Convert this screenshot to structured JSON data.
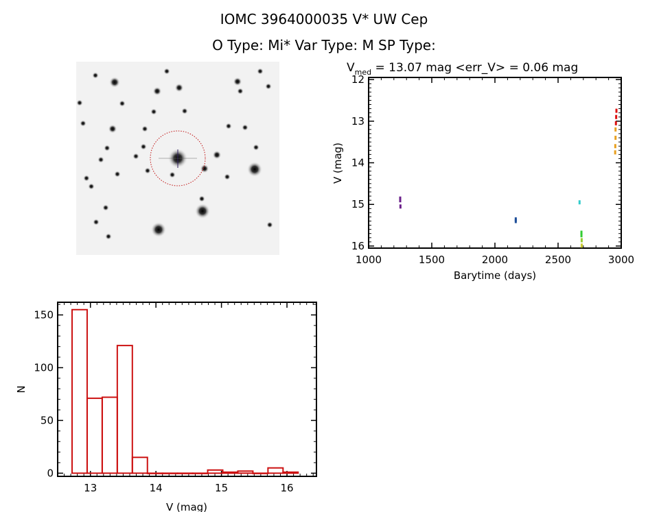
{
  "header": {
    "title_line1": "IOMC 3964000035    V* UW Cep",
    "title_line2": "O Type: Mi*  Var Type: M  SP Type:"
  },
  "chart_data": [
    {
      "type": "image",
      "title": "Sky image",
      "target_marker": "dotted red circle around central star"
    },
    {
      "type": "scatter",
      "title_prefix": "V",
      "title_sub": "med",
      "title_rest": " = 13.07 mag <err_V> = 0.06 mag",
      "xlabel": "Barytime (days)",
      "ylabel": "V (mag)",
      "xlim": [
        1000,
        3000
      ],
      "ylim": [
        16.05,
        11.95
      ],
      "xticks": [
        1000,
        1500,
        2000,
        2500,
        3000
      ],
      "yticks": [
        12,
        13,
        14,
        15,
        16
      ],
      "points": [
        {
          "x": 1250,
          "y": 14.86,
          "color": "#6a1f8a"
        },
        {
          "x": 1250,
          "y": 14.9,
          "color": "#6a1f8a"
        },
        {
          "x": 1252,
          "y": 15.05,
          "color": "#6a1f8a"
        },
        {
          "x": 2165,
          "y": 15.36,
          "color": "#1f4f9a"
        },
        {
          "x": 2165,
          "y": 15.4,
          "color": "#1f4f9a"
        },
        {
          "x": 2670,
          "y": 14.95,
          "color": "#33cccc"
        },
        {
          "x": 2685,
          "y": 15.68,
          "color": "#33cc33"
        },
        {
          "x": 2685,
          "y": 15.74,
          "color": "#33cc33"
        },
        {
          "x": 2687,
          "y": 15.86,
          "color": "#99cc33"
        },
        {
          "x": 2687,
          "y": 15.99,
          "color": "#cccc33"
        },
        {
          "x": 2962,
          "y": 12.75,
          "color": "#dd1111"
        },
        {
          "x": 2960,
          "y": 12.9,
          "color": "#dd1111"
        },
        {
          "x": 2958,
          "y": 13.05,
          "color": "#dd1111"
        },
        {
          "x": 2955,
          "y": 13.2,
          "color": "#e8a020"
        },
        {
          "x": 2955,
          "y": 13.4,
          "color": "#e8a020"
        },
        {
          "x": 2953,
          "y": 13.6,
          "color": "#e8a020"
        },
        {
          "x": 2952,
          "y": 13.75,
          "color": "#e8a020"
        }
      ]
    },
    {
      "type": "bar",
      "subtype": "histogram",
      "xlabel": "V (mag)",
      "ylabel": "N",
      "xlim": [
        12.5,
        16.45
      ],
      "ylim": [
        -3,
        162
      ],
      "xticks": [
        13,
        14,
        15,
        16
      ],
      "yticks": [
        0,
        50,
        100,
        150
      ],
      "bin_start": 12.72,
      "bin_width": 0.23,
      "counts": [
        155,
        71,
        72,
        121,
        15,
        0,
        0,
        0,
        0,
        3,
        1,
        2,
        0,
        5,
        1
      ],
      "color": "#cc1111"
    }
  ]
}
